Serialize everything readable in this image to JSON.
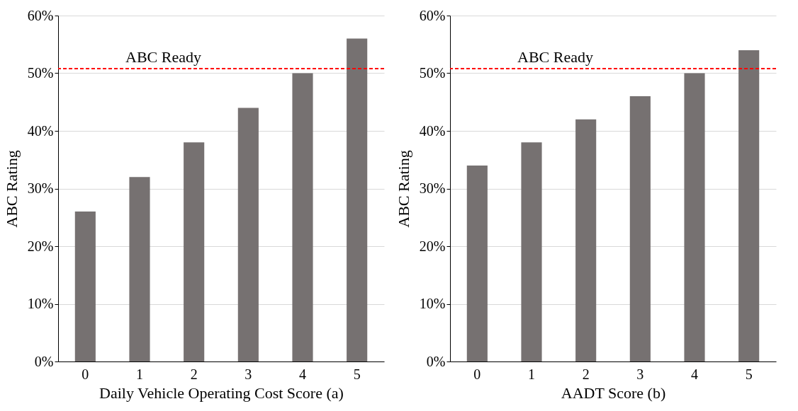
{
  "chart_data": [
    {
      "type": "bar",
      "xlabel": "Daily Vehicle Operating Cost Score (a)",
      "ylabel": "ABC Rating",
      "categories": [
        "0",
        "1",
        "2",
        "3",
        "4",
        "5"
      ],
      "values": [
        26,
        32,
        38,
        44,
        50,
        56
      ],
      "color": "#767171",
      "ylim": [
        0,
        60
      ],
      "yticks": [
        {
          "value": 0,
          "label": "0%"
        },
        {
          "value": 10,
          "label": "10%"
        },
        {
          "value": 20,
          "label": "20%"
        },
        {
          "value": 30,
          "label": "30%"
        },
        {
          "value": 40,
          "label": "40%"
        },
        {
          "value": 50,
          "label": "50%"
        },
        {
          "value": 60,
          "label": "60%"
        }
      ],
      "grid": "y",
      "ref_lines": [
        {
          "axis": "y",
          "value": 50.8,
          "label": "ABC Ready",
          "color": "#ff0000",
          "line_style": "dashed"
        }
      ]
    },
    {
      "type": "bar",
      "xlabel": "AADT Score (b)",
      "ylabel": "ABC Rating",
      "categories": [
        "0",
        "1",
        "2",
        "3",
        "4",
        "5"
      ],
      "values": [
        34,
        38,
        42,
        46,
        50,
        54
      ],
      "color": "#767171",
      "ylim": [
        0,
        60
      ],
      "yticks": [
        {
          "value": 0,
          "label": "0%"
        },
        {
          "value": 10,
          "label": "10%"
        },
        {
          "value": 20,
          "label": "20%"
        },
        {
          "value": 30,
          "label": "30%"
        },
        {
          "value": 40,
          "label": "40%"
        },
        {
          "value": 50,
          "label": "50%"
        },
        {
          "value": 60,
          "label": "60%"
        }
      ],
      "grid": "y",
      "ref_lines": [
        {
          "axis": "y",
          "value": 50.8,
          "label": "ABC Ready",
          "color": "#ff0000",
          "line_style": "dashed"
        }
      ]
    }
  ]
}
